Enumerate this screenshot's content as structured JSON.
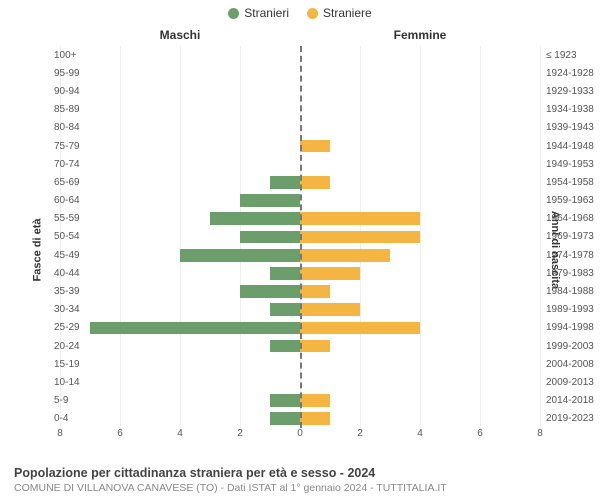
{
  "legend": {
    "male": {
      "label": "Stranieri",
      "color": "#6b9e6b"
    },
    "female": {
      "label": "Straniere",
      "color": "#f5b542"
    }
  },
  "panel_titles": {
    "left": "Maschi",
    "right": "Femmine"
  },
  "axis_labels": {
    "left": "Fasce di età",
    "right": "Anni di nascita"
  },
  "chart": {
    "type": "population-pyramid",
    "x_max": 8,
    "x_ticks": [
      8,
      6,
      4,
      2,
      0,
      2,
      4,
      6,
      8
    ],
    "colors": {
      "male": "#6b9e6b",
      "female": "#f5b542",
      "grid": "#eeeeee",
      "centerline": "#777777",
      "background": "#ffffff"
    },
    "font_sizes": {
      "tick": 10,
      "axis_label": 11,
      "panel_title": 12,
      "legend": 12,
      "title": 12.5,
      "subtitle": 10.5
    },
    "rows": [
      {
        "age": "100+",
        "male": 0,
        "female": 0,
        "birth": "≤ 1923"
      },
      {
        "age": "95-99",
        "male": 0,
        "female": 0,
        "birth": "1924-1928"
      },
      {
        "age": "90-94",
        "male": 0,
        "female": 0,
        "birth": "1929-1933"
      },
      {
        "age": "85-89",
        "male": 0,
        "female": 0,
        "birth": "1934-1938"
      },
      {
        "age": "80-84",
        "male": 0,
        "female": 0,
        "birth": "1939-1943"
      },
      {
        "age": "75-79",
        "male": 0,
        "female": 1,
        "birth": "1944-1948"
      },
      {
        "age": "70-74",
        "male": 0,
        "female": 0,
        "birth": "1949-1953"
      },
      {
        "age": "65-69",
        "male": 1,
        "female": 1,
        "birth": "1954-1958"
      },
      {
        "age": "60-64",
        "male": 2,
        "female": 0,
        "birth": "1959-1963"
      },
      {
        "age": "55-59",
        "male": 3,
        "female": 4,
        "birth": "1964-1968"
      },
      {
        "age": "50-54",
        "male": 2,
        "female": 4,
        "birth": "1969-1973"
      },
      {
        "age": "45-49",
        "male": 4,
        "female": 3,
        "birth": "1974-1978"
      },
      {
        "age": "40-44",
        "male": 1,
        "female": 2,
        "birth": "1979-1983"
      },
      {
        "age": "35-39",
        "male": 2,
        "female": 1,
        "birth": "1984-1988"
      },
      {
        "age": "30-34",
        "male": 1,
        "female": 2,
        "birth": "1989-1993"
      },
      {
        "age": "25-29",
        "male": 7,
        "female": 4,
        "birth": "1994-1998"
      },
      {
        "age": "20-24",
        "male": 1,
        "female": 1,
        "birth": "1999-2003"
      },
      {
        "age": "15-19",
        "male": 0,
        "female": 0,
        "birth": "2004-2008"
      },
      {
        "age": "10-14",
        "male": 0,
        "female": 0,
        "birth": "2009-2013"
      },
      {
        "age": "5-9",
        "male": 1,
        "female": 1,
        "birth": "2014-2018"
      },
      {
        "age": "0-4",
        "male": 1,
        "female": 1,
        "birth": "2019-2023"
      }
    ]
  },
  "title": "Popolazione per cittadinanza straniera per età e sesso - 2024",
  "subtitle": "COMUNE DI VILLANOVA CANAVESE (TO) - Dati ISTAT al 1° gennaio 2024 - TUTTITALIA.IT"
}
